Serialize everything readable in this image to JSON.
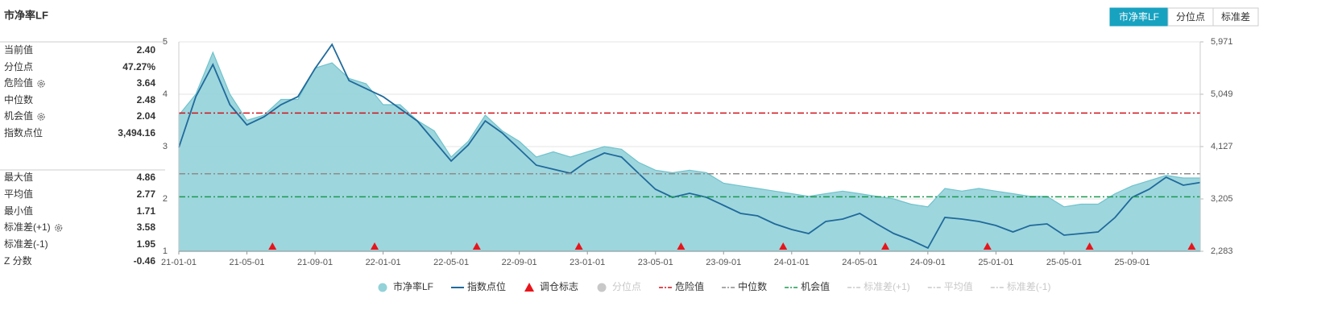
{
  "header": {
    "title": "市净率LF"
  },
  "tabs": [
    "市净率LF",
    "分位点",
    "标准差"
  ],
  "stats": [
    [
      [
        "当前值",
        "2.40"
      ],
      [
        "分位点",
        "47.27%"
      ],
      [
        "危险值",
        "3.64"
      ],
      [
        "中位数",
        "2.48"
      ],
      [
        "机会值",
        "2.04"
      ],
      [
        "指数点位",
        "3,494.16"
      ]
    ],
    [
      [
        "最大值",
        "4.86"
      ],
      [
        "平均值",
        "2.77"
      ],
      [
        "最小值",
        "1.71"
      ],
      [
        "标准差(+1)",
        "3.58"
      ],
      [
        "标准差(-1)",
        "1.95"
      ],
      [
        "Z 分数",
        "-0.46"
      ]
    ]
  ],
  "chart_data": {
    "type": "area-line",
    "x": [
      0,
      1,
      2,
      3,
      4,
      5,
      6,
      7,
      8,
      9,
      10,
      11,
      12,
      13,
      14,
      15,
      16,
      17,
      18,
      19,
      20,
      21,
      22,
      23,
      24,
      25,
      26,
      27,
      28,
      29,
      30,
      31,
      32,
      33,
      34,
      35,
      36,
      37,
      38,
      39,
      40,
      41,
      42,
      43,
      44,
      45,
      46,
      47,
      48,
      49,
      50,
      51,
      52,
      53,
      54,
      55,
      56,
      57,
      58,
      59,
      60
    ],
    "xlim": [
      0,
      60
    ],
    "xticks": [
      {
        "value": 0,
        "label": "21-01-01"
      },
      {
        "value": 4,
        "label": "21-05-01"
      },
      {
        "value": 8,
        "label": "21-09-01"
      },
      {
        "value": 12,
        "label": "22-01-01"
      },
      {
        "value": 16,
        "label": "22-05-01"
      },
      {
        "value": 20,
        "label": "22-09-01"
      },
      {
        "value": 24,
        "label": "23-01-01"
      },
      {
        "value": 28,
        "label": "23-05-01"
      },
      {
        "value": 32,
        "label": "23-09-01"
      },
      {
        "value": 36,
        "label": "24-01-01"
      },
      {
        "value": 40,
        "label": "24-05-01"
      },
      {
        "value": 44,
        "label": "24-09-01"
      },
      {
        "value": 48,
        "label": "25-01-01"
      },
      {
        "value": 52,
        "label": "25-05-01"
      },
      {
        "value": 56,
        "label": "25-09-01"
      }
    ],
    "ylim": [
      1,
      5
    ],
    "yticks": [
      1,
      2,
      3,
      4,
      5
    ],
    "y2lim": [
      2283,
      5971
    ],
    "y2ticks": [
      {
        "value": 2283,
        "label": "2,283"
      },
      {
        "value": 3205,
        "label": "3,205"
      },
      {
        "value": 4127,
        "label": "4,127"
      },
      {
        "value": 5049,
        "label": "5,049"
      },
      {
        "value": 5971,
        "label": "5,971"
      }
    ],
    "series": [
      {
        "name": "市净率LF",
        "kind": "area",
        "color": "#93d2d9",
        "values": [
          3.6,
          4.0,
          4.8,
          4.0,
          3.5,
          3.6,
          3.9,
          3.9,
          4.5,
          4.6,
          4.3,
          4.2,
          3.8,
          3.8,
          3.5,
          3.3,
          2.8,
          3.1,
          3.6,
          3.3,
          3.1,
          2.8,
          2.9,
          2.8,
          2.9,
          3.0,
          2.95,
          2.7,
          2.55,
          2.5,
          2.55,
          2.5,
          2.3,
          2.25,
          2.2,
          2.15,
          2.1,
          2.05,
          2.1,
          2.15,
          2.1,
          2.05,
          2.0,
          1.9,
          1.85,
          2.2,
          2.15,
          2.2,
          2.15,
          2.1,
          2.05,
          2.05,
          1.85,
          1.9,
          1.9,
          2.1,
          2.25,
          2.35,
          2.45,
          2.4,
          2.4
        ]
      },
      {
        "name": "指数点位",
        "kind": "line",
        "axis": "y2",
        "color": "#1f6a9c",
        "values": [
          4112,
          5006,
          5573,
          4864,
          4509,
          4651,
          4864,
          5006,
          5502,
          5927,
          5289,
          5147,
          5006,
          4793,
          4580,
          4226,
          3871,
          4155,
          4580,
          4367,
          4084,
          3800,
          3729,
          3658,
          3871,
          4013,
          3942,
          3658,
          3375,
          3233,
          3304,
          3233,
          3091,
          2950,
          2907,
          2765,
          2666,
          2595,
          2808,
          2850,
          2950,
          2765,
          2595,
          2481,
          2340,
          2879,
          2850,
          2808,
          2737,
          2623,
          2737,
          2765,
          2567,
          2595,
          2623,
          2879,
          3233,
          3375,
          3588,
          3446,
          3494
        ]
      }
    ],
    "markers": {
      "name": "调仓标志",
      "color": "#e8141b",
      "x": [
        5.5,
        11.5,
        17.5,
        23.5,
        29.5,
        35.5,
        41.5,
        47.5,
        53.5,
        59.5
      ]
    },
    "ref_lines": [
      {
        "name": "危险值",
        "value": 3.64,
        "color": "#d0121b"
      },
      {
        "name": "中位数",
        "value": 2.48,
        "color": "#8c8c8c"
      },
      {
        "name": "机会值",
        "value": 2.04,
        "color": "#1a9a50"
      }
    ],
    "hidden": [
      {
        "name": "分位点"
      },
      {
        "name": "标准差(+1)"
      },
      {
        "name": "平均值"
      },
      {
        "name": "标准差(-1)"
      }
    ],
    "grid": true
  }
}
